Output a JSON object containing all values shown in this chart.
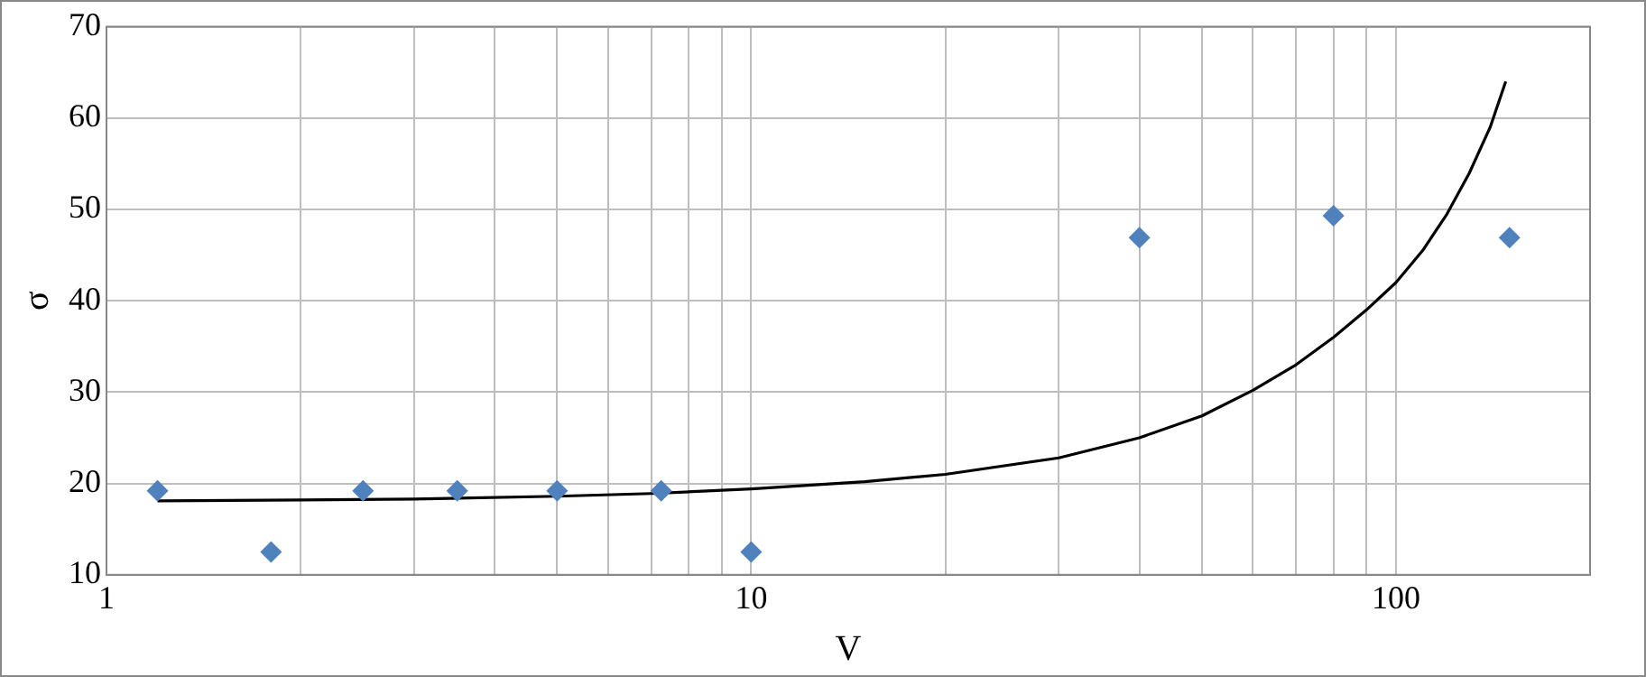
{
  "chart_data": {
    "type": "scatter",
    "xlabel": "V",
    "ylabel": "σ",
    "log": "x",
    "grid": true,
    "legend": false,
    "xlim": [
      1,
      200
    ],
    "ylim": [
      10,
      70
    ],
    "xticks": [
      1,
      {
        "value": 2,
        "label": null
      },
      {
        "value": 3,
        "label": null
      },
      {
        "value": 4,
        "label": null
      },
      {
        "value": 5,
        "label": null
      },
      {
        "value": 6,
        "label": null
      },
      {
        "value": 7,
        "label": null
      },
      {
        "value": 8,
        "label": null
      },
      {
        "value": 9,
        "label": null
      },
      10,
      {
        "value": 20,
        "label": null
      },
      {
        "value": 30,
        "label": null
      },
      {
        "value": 40,
        "label": null
      },
      {
        "value": 50,
        "label": null
      },
      {
        "value": 60,
        "label": null
      },
      {
        "value": 70,
        "label": null
      },
      {
        "value": 80,
        "label": null
      },
      {
        "value": 90,
        "label": null
      },
      100,
      {
        "value": 200,
        "label": null
      }
    ],
    "yticks": [
      10,
      20,
      30,
      40,
      50,
      60,
      70
    ],
    "series": [
      {
        "type": "scatter",
        "marker": "diamond",
        "color": "#4f81bd",
        "x": [
          1.2,
          1.8,
          2.5,
          3.5,
          5,
          7.25,
          10,
          40,
          80,
          150
        ],
        "values": [
          19.2,
          12.5,
          19.2,
          19.2,
          19.2,
          19.2,
          12.5,
          46.9,
          49.3,
          46.9
        ]
      },
      {
        "type": "line",
        "marker": "none",
        "line_style": "solid",
        "color": "#000000",
        "x": [
          1.2,
          2,
          3,
          5,
          7,
          10,
          15,
          20,
          30,
          40,
          50,
          60,
          70,
          80,
          90,
          100,
          110,
          120,
          130,
          140,
          148
        ],
        "values": [
          18.1,
          18.2,
          18.3,
          18.6,
          18.9,
          19.4,
          20.2,
          21,
          22.8,
          25,
          27.4,
          30.2,
          33,
          36,
          39,
          42,
          45.5,
          49.5,
          54,
          59,
          64
        ]
      }
    ]
  }
}
